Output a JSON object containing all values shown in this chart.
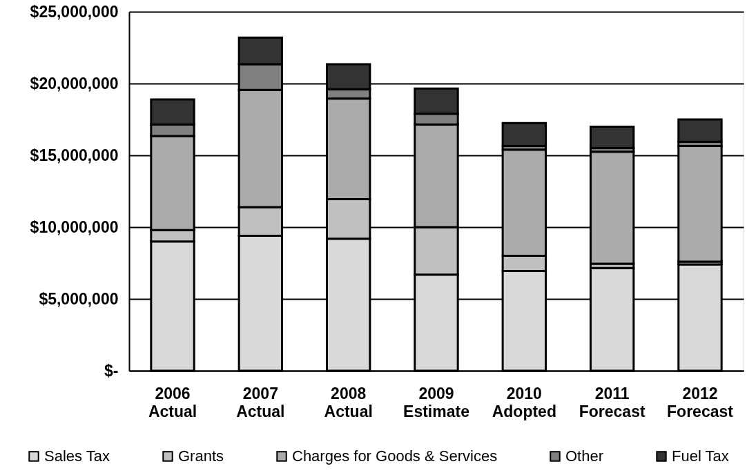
{
  "chart_data": {
    "type": "bar",
    "stacked": true,
    "categories": [
      "2006 Actual",
      "2007 Actual",
      "2008 Actual",
      "2009 Estimate",
      "2010 Adopted",
      "2011 Forecast",
      "2012 Forecast"
    ],
    "series": [
      {
        "name": "Sales Tax",
        "color": "#d9d9d9",
        "values": [
          9000000,
          9400000,
          9200000,
          6700000,
          6950000,
          7150000,
          7400000
        ]
      },
      {
        "name": "Grants",
        "color": "#c0c0c0",
        "values": [
          800000,
          2000000,
          2750000,
          3300000,
          1050000,
          300000,
          200000
        ]
      },
      {
        "name": "Charges for Goods & Services",
        "color": "#ababab",
        "values": [
          6550000,
          8150000,
          7000000,
          7150000,
          7400000,
          7800000,
          8050000
        ]
      },
      {
        "name": "Other",
        "color": "#808080",
        "values": [
          800000,
          1800000,
          650000,
          750000,
          250000,
          250000,
          300000
        ]
      },
      {
        "name": "Fuel Tax",
        "color": "#333333",
        "values": [
          1750000,
          1850000,
          1750000,
          1750000,
          1600000,
          1500000,
          1550000
        ]
      }
    ],
    "ylim": [
      0,
      25000000
    ],
    "yticks": [
      {
        "value": 0,
        "label": "$-"
      },
      {
        "value": 5000000,
        "label": "$5,000,000"
      },
      {
        "value": 10000000,
        "label": "$10,000,000"
      },
      {
        "value": 15000000,
        "label": "$15,000,000"
      },
      {
        "value": 20000000,
        "label": "$20,000,000"
      },
      {
        "value": 25000000,
        "label": "$25,000,000"
      }
    ],
    "grid": "y",
    "legend": "bottom"
  }
}
